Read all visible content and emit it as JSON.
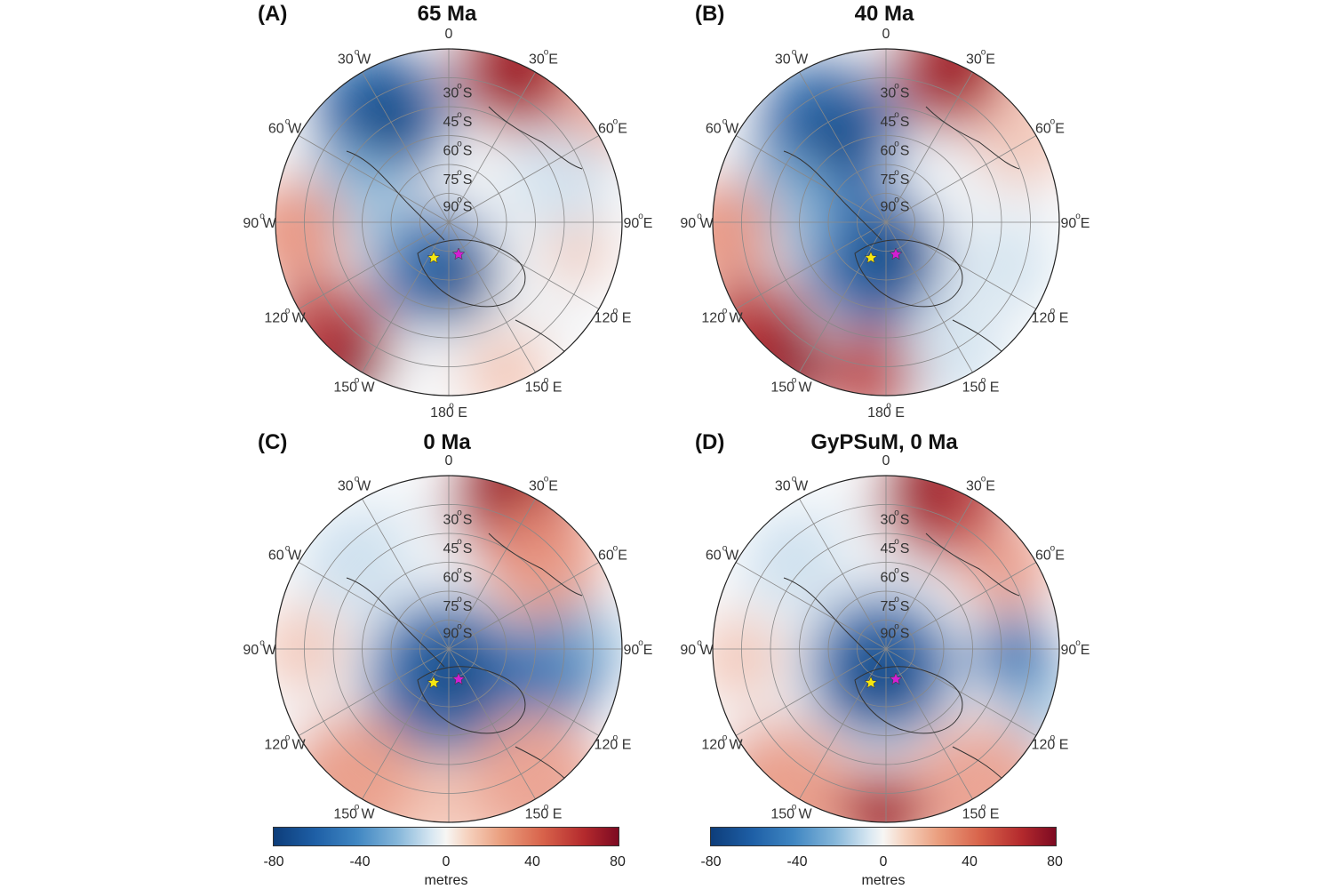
{
  "panels": [
    {
      "letter": "(A)",
      "title": "65 Ma"
    },
    {
      "letter": "(B)",
      "title": "40 Ma"
    },
    {
      "letter": "(C)",
      "title": "0 Ma"
    },
    {
      "letter": "(D)",
      "title": "GyPSuM, 0 Ma"
    }
  ],
  "lon_labels": {
    "l0": "0",
    "l30e": "30",
    "l60e": "60",
    "l90e": "90",
    "l120e": "120",
    "l150e": "150",
    "l180": "180",
    "l150w": "150",
    "l120w": "120",
    "l90w": "90",
    "l60w": "60",
    "l30w": "30",
    "east": "E",
    "west": "W"
  },
  "lat_labels": {
    "l30": "30",
    "l45": "45",
    "l60": "60",
    "l75": "75",
    "l90": "90",
    "south": "S"
  },
  "degree_symbol": "o",
  "colorbar": {
    "ticks": [
      "-80",
      "-40",
      "0",
      "40",
      "80"
    ],
    "unit": "metres",
    "range": [
      -80,
      80
    ],
    "colors": [
      "#0d3d7a",
      "#f7f6f4",
      "#7d0a22"
    ]
  },
  "markers": {
    "yellow_star": {
      "color": "#f5e610"
    },
    "magenta_star": {
      "color": "#d21fd2"
    }
  }
}
